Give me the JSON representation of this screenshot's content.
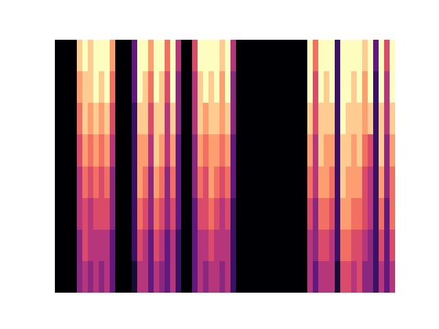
{
  "chart_data": {
    "type": "heatmap",
    "color": "magma",
    "color_range": [
      0,
      1
    ],
    "tick_labels": false,
    "cells": [
      [
        0,
        0,
        0,
        0,
        0.9,
        1,
        0.9,
        1,
        1,
        1,
        0.8,
        0,
        0,
        0,
        0.3,
        1,
        1,
        0.8,
        1,
        1,
        0.7,
        1,
        0.5,
        0,
        0,
        0.6,
        1,
        1,
        1,
        1,
        0.9,
        1,
        0.5,
        0,
        0,
        0,
        0,
        0,
        0,
        0,
        0,
        0,
        0,
        0,
        0,
        0,
        1,
        0.7,
        1,
        1,
        1,
        0.2,
        1,
        1,
        1,
        1,
        0.9,
        1,
        0.3,
        1,
        0.6,
        1
      ],
      [
        0,
        0,
        0,
        0,
        0.8,
        0.9,
        0.9,
        1,
        0.9,
        1,
        0.7,
        0,
        0,
        0,
        0.3,
        1,
        0.9,
        0.7,
        1,
        0.9,
        0.6,
        1,
        0.4,
        0,
        0,
        0.5,
        0.9,
        1,
        0.9,
        1,
        0.8,
        1,
        0.4,
        0,
        0,
        0,
        0,
        0,
        0,
        0,
        0,
        0,
        0,
        0,
        0,
        0,
        1,
        0.6,
        1,
        0.9,
        1,
        0.2,
        1,
        1,
        0.9,
        1,
        0.8,
        1,
        0.2,
        1,
        0.5,
        1
      ],
      [
        0,
        0,
        0,
        0,
        0.7,
        0.9,
        0.8,
        0.9,
        0.8,
        0.9,
        0.6,
        0,
        0,
        0,
        0.2,
        0.9,
        0.9,
        0.6,
        0.9,
        0.9,
        0.5,
        0.9,
        0.4,
        0,
        0,
        0.5,
        0.9,
        0.8,
        0.9,
        0.9,
        0.8,
        0.9,
        0.4,
        0,
        0,
        0,
        0,
        0,
        0,
        0,
        0,
        0,
        0,
        0,
        0,
        0,
        0.9,
        0.6,
        0.9,
        0.9,
        0.9,
        0.2,
        1,
        0.9,
        0.9,
        0.9,
        0.8,
        0.9,
        0.2,
        0.9,
        0.5,
        0.9
      ],
      [
        0,
        0,
        0,
        0,
        0.6,
        0.8,
        0.7,
        0.8,
        0.7,
        0.8,
        0.5,
        0,
        0,
        0,
        0.2,
        0.8,
        0.8,
        0.5,
        0.9,
        0.8,
        0.5,
        0.8,
        0.3,
        0,
        0,
        0.4,
        0.8,
        0.7,
        0.8,
        0.8,
        0.7,
        0.8,
        0.3,
        0,
        0,
        0,
        0,
        0,
        0,
        0,
        0,
        0,
        0,
        0,
        0,
        0,
        0.8,
        0.5,
        0.9,
        0.8,
        0.8,
        0.2,
        0.9,
        0.9,
        0.8,
        0.9,
        0.7,
        0.6,
        0.2,
        0.9,
        0.4,
        0.8
      ],
      [
        0,
        0,
        0,
        0,
        0.5,
        0.7,
        0.6,
        0.7,
        0.6,
        0.7,
        0.4,
        0,
        0,
        0,
        0.2,
        0.8,
        0.7,
        0.4,
        0.8,
        0.7,
        0.4,
        0.7,
        0.3,
        0,
        0,
        0.4,
        0.7,
        0.6,
        0.8,
        0.7,
        0.6,
        0.7,
        0.3,
        0,
        0,
        0,
        0,
        0,
        0,
        0,
        0,
        0,
        0,
        0,
        0,
        0,
        0.7,
        0.5,
        0.8,
        0.8,
        0.7,
        0.2,
        0.9,
        0.8,
        0.8,
        0.8,
        0.6,
        0.5,
        0.2,
        0.8,
        0.4,
        0.7
      ],
      [
        0,
        0,
        0,
        0,
        0.5,
        0.6,
        0.5,
        0.6,
        0.6,
        0.6,
        0.4,
        0,
        0,
        0,
        0.2,
        0.7,
        0.6,
        0.4,
        0.7,
        0.6,
        0.4,
        0.6,
        0.3,
        0,
        0,
        0.3,
        0.6,
        0.6,
        0.7,
        0.6,
        0.5,
        0.6,
        0.2,
        0,
        0,
        0,
        0,
        0,
        0,
        0,
        0,
        0,
        0,
        0,
        0,
        0,
        0.6,
        0.4,
        0.7,
        0.7,
        0.6,
        0.2,
        0.8,
        0.8,
        0.7,
        0.7,
        0.6,
        0.5,
        0.2,
        0.7,
        0.3,
        0.7
      ],
      [
        0,
        0,
        0,
        0,
        0.4,
        0.6,
        0.5,
        0.5,
        0.5,
        0.5,
        0.3,
        0,
        0,
        0,
        0.2,
        0.6,
        0.5,
        0.3,
        0.6,
        0.5,
        0.3,
        0.5,
        0.2,
        0,
        0,
        0.3,
        0.5,
        0.5,
        0.6,
        0.5,
        0.5,
        0.5,
        0.2,
        0,
        0,
        0,
        0,
        0,
        0,
        0,
        0,
        0,
        0,
        0,
        0,
        0,
        0.5,
        0.4,
        0.6,
        0.6,
        0.5,
        0.2,
        0.7,
        0.7,
        0.6,
        0.6,
        0.5,
        0.4,
        0.2,
        0.6,
        0.3,
        0.6
      ],
      [
        0,
        0,
        0,
        0,
        0.4,
        0.5,
        0.4,
        0.5,
        0.4,
        0.5,
        0.3,
        0,
        0,
        0,
        0.1,
        0.5,
        0.5,
        0.3,
        0.5,
        0.4,
        0.3,
        0.5,
        0.2,
        0,
        0,
        0.3,
        0.5,
        0.4,
        0.5,
        0.5,
        0.4,
        0.5,
        0.2,
        0,
        0,
        0,
        0,
        0,
        0,
        0,
        0,
        0,
        0,
        0,
        0,
        0,
        0.5,
        0.3,
        0.5,
        0.5,
        0.5,
        0.1,
        0.6,
        0.6,
        0.5,
        0.6,
        0.4,
        0.4,
        0.2,
        0.5,
        0.3,
        0.5
      ]
    ]
  }
}
